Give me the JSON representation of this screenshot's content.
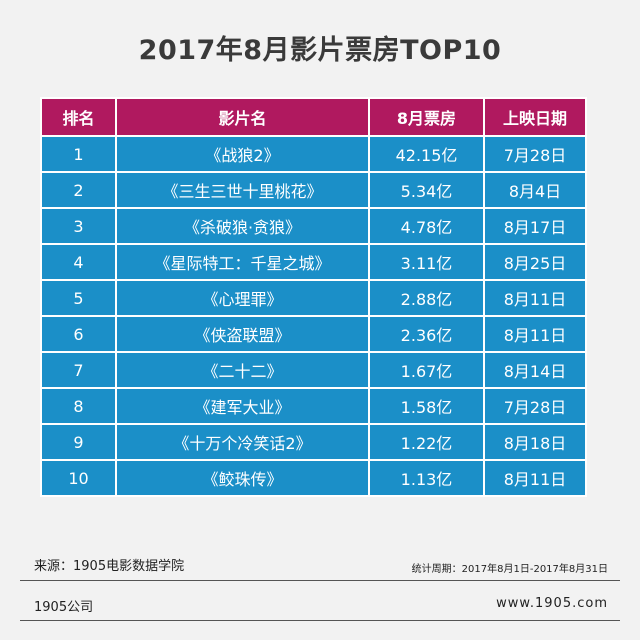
{
  "title": "2017年8月影片票房TOP10",
  "chart_data": {
    "type": "table",
    "columns": [
      "排名",
      "影片名",
      "8月票房",
      "上映日期"
    ],
    "rows": [
      [
        "1",
        "《战狼2》",
        "42.15亿",
        "7月28日"
      ],
      [
        "2",
        "《三生三世十里桃花》",
        "5.34亿",
        "8月4日"
      ],
      [
        "3",
        "《杀破狼·贪狼》",
        "4.78亿",
        "8月17日"
      ],
      [
        "4",
        "《星际特工：千星之城》",
        "3.11亿",
        "8月25日"
      ],
      [
        "5",
        "《心理罪》",
        "2.88亿",
        "8月11日"
      ],
      [
        "6",
        "《侠盗联盟》",
        "2.36亿",
        "8月11日"
      ],
      [
        "7",
        "《二十二》",
        "1.67亿",
        "8月14日"
      ],
      [
        "8",
        "《建军大业》",
        "1.58亿",
        "7月28日"
      ],
      [
        "9",
        "《十万个冷笑话2》",
        "1.22亿",
        "8月18日"
      ],
      [
        "10",
        "《鲛珠传》",
        "1.13亿",
        "8月11日"
      ]
    ]
  },
  "footer": {
    "source": "来源：1905电影数据学院",
    "period": "统计周期：2017年8月1日-2017年8月31日",
    "company": "1905公司",
    "website": "www.1905.com"
  },
  "colors": {
    "header": "#b0195f",
    "cell": "#1b8fc8",
    "background": "#f2f2f2"
  }
}
